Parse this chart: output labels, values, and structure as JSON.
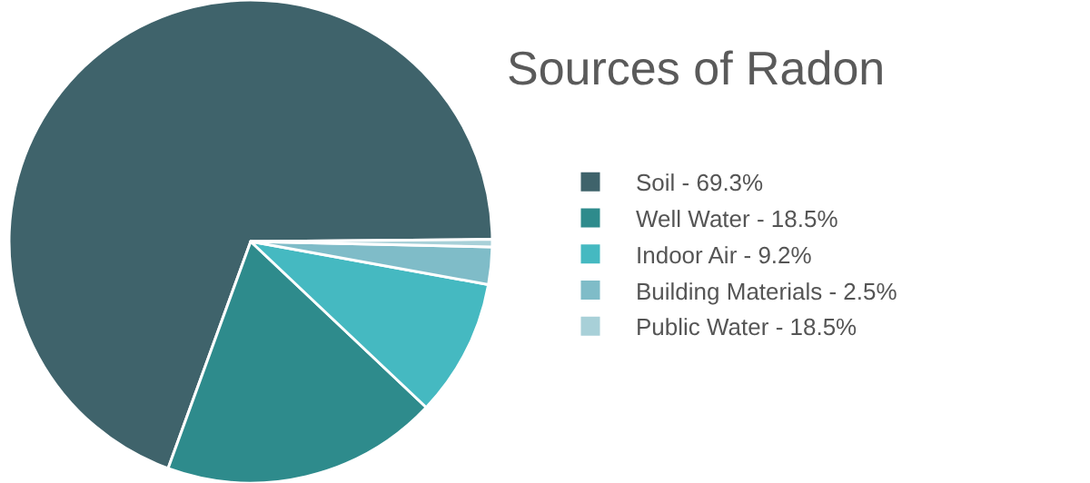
{
  "chart_data": {
    "type": "pie",
    "title": "Sources of Radon",
    "categories": [
      "Soil - 69.3%",
      "Well Water - 18.5%",
      "Indoor Air - 9.2%",
      "Building Materials - 2.5%",
      "Public Water - 18.5%"
    ],
    "values": [
      69.3,
      18.5,
      9.2,
      2.5,
      0.5
    ],
    "colors": [
      "#3f636b",
      "#2e8b8c",
      "#45b9c1",
      "#7fbcc8",
      "#a8d0d8"
    ],
    "legend": "right"
  }
}
